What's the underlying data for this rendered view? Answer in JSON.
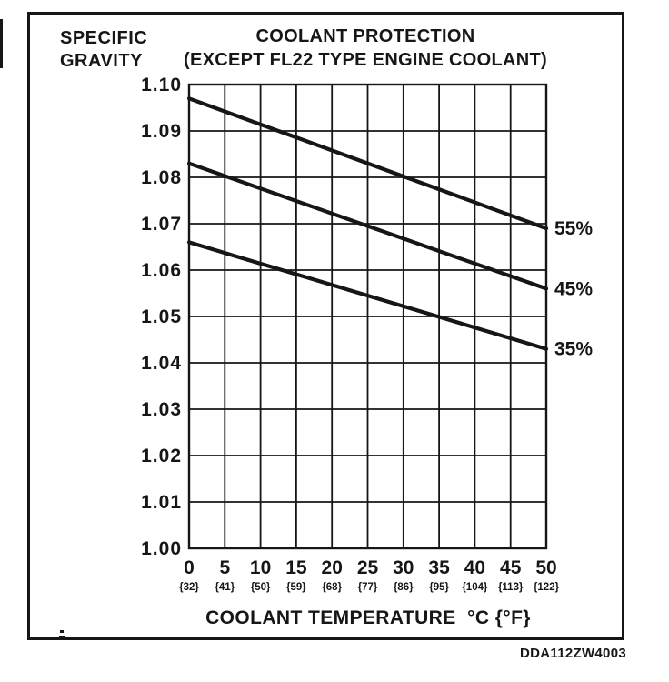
{
  "figure": {
    "background_color": "#ffffff",
    "ink_color": "#161616",
    "y_axis_title": {
      "line1": "SPECIFIC",
      "line2": "GRAVITY"
    },
    "title": {
      "line1": "COOLANT PROTECTION",
      "line2": "(EXCEPT FL22 TYPE ENGINE COOLANT)"
    },
    "x_axis_title": "COOLANT TEMPERATURE  °C {°F}",
    "figure_code": "DDA112ZW4003"
  },
  "chart_data": {
    "type": "line",
    "title": "COOLANT PROTECTION (EXCEPT FL22 TYPE ENGINE COOLANT)",
    "xlabel": "COOLANT TEMPERATURE °C {°F}",
    "ylabel": "SPECIFIC GRAVITY",
    "xlim": [
      0,
      50
    ],
    "ylim": [
      1.0,
      1.1
    ],
    "grid": true,
    "legend_position": "right of line ends",
    "x_ticks": [
      {
        "c": "0",
        "f": "{32}"
      },
      {
        "c": "5",
        "f": "{41}"
      },
      {
        "c": "10",
        "f": "{50}"
      },
      {
        "c": "15",
        "f": "{59}"
      },
      {
        "c": "20",
        "f": "{68}"
      },
      {
        "c": "25",
        "f": "{77}"
      },
      {
        "c": "30",
        "f": "{86}"
      },
      {
        "c": "35",
        "f": "{95}"
      },
      {
        "c": "40",
        "f": "{104}"
      },
      {
        "c": "45",
        "f": "{113}"
      },
      {
        "c": "50",
        "f": "{122}"
      }
    ],
    "y_ticks": [
      "1.10",
      "1.09",
      "1.08",
      "1.07",
      "1.06",
      "1.05",
      "1.04",
      "1.03",
      "1.02",
      "1.01",
      "1.00"
    ],
    "series": [
      {
        "name": "55%",
        "x": [
          0,
          50
        ],
        "values": [
          1.097,
          1.069
        ]
      },
      {
        "name": "45%",
        "x": [
          0,
          50
        ],
        "values": [
          1.083,
          1.056
        ]
      },
      {
        "name": "35%",
        "x": [
          0,
          50
        ],
        "values": [
          1.066,
          1.043
        ]
      }
    ]
  }
}
